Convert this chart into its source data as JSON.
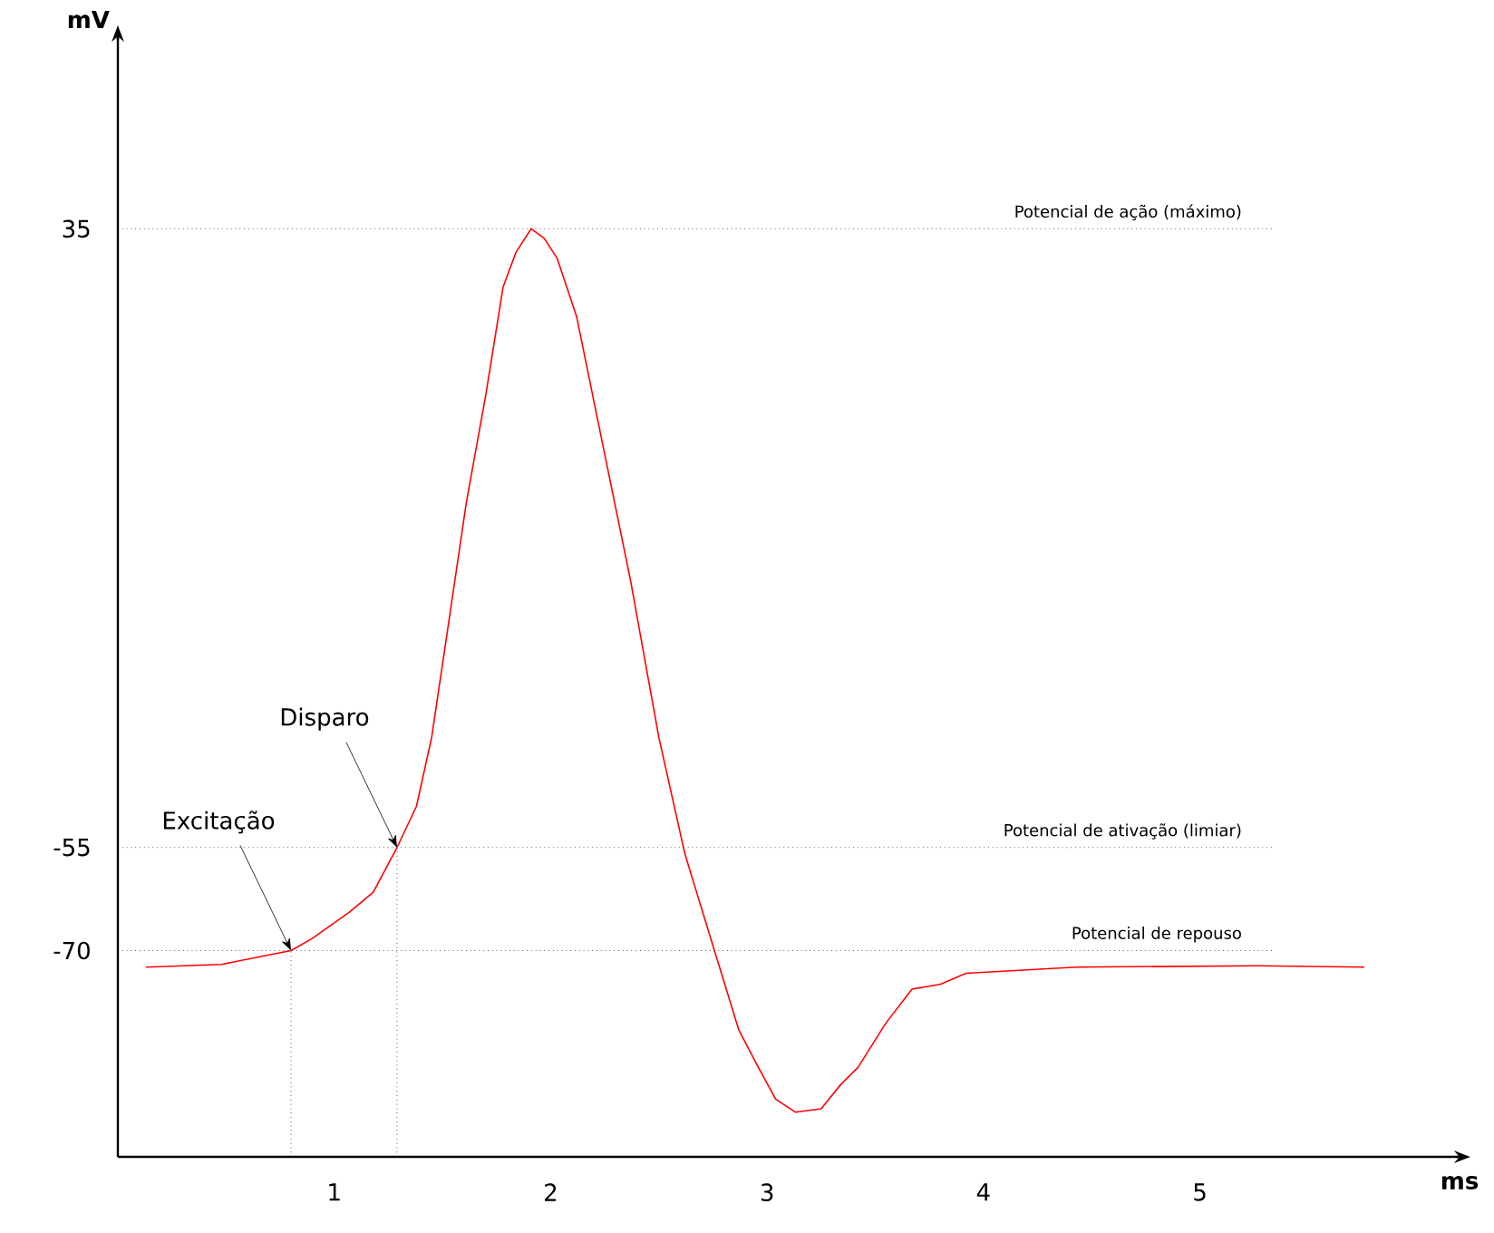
{
  "chart_data": {
    "type": "line",
    "xlabel": "ms",
    "ylabel": "mV",
    "x": [
      0.13,
      0.48,
      0.8,
      0.9,
      1.07,
      1.18,
      1.29,
      1.38,
      1.45,
      1.53,
      1.61,
      1.7,
      1.78,
      1.84,
      1.91,
      1.97,
      2.03,
      2.12,
      2.24,
      2.37,
      2.5,
      2.62,
      2.75,
      2.87,
      2.96,
      3.04,
      3.13,
      3.25,
      3.34,
      3.42,
      3.55,
      3.67,
      3.8,
      3.92,
      4.43,
      5.27,
      5.76
    ],
    "series": [
      {
        "color": "#ff0000",
        "values": [
          -72.4,
          -72,
          -70,
          -68.2,
          -64.4,
          -61.5,
          -55,
          -49,
          -39,
          -22,
          -4.9,
          10.8,
          26.5,
          31.6,
          35,
          33.6,
          30.7,
          22.2,
          3.7,
          -16.3,
          -39,
          -55.9,
          -69.3,
          -81.6,
          -87,
          -91.6,
          -93.5,
          -93,
          -89.5,
          -87,
          -80.5,
          -75.6,
          -74.9,
          -73.3,
          -72.4,
          -72.2,
          -72.4
        ]
      }
    ],
    "xlim": [
      0,
      6.2
    ],
    "ylim": [
      -100,
      63
    ],
    "xticks": [
      1,
      2,
      3,
      4,
      5
    ],
    "yticks": [
      35,
      -55,
      -70
    ],
    "grid": false,
    "marker": "none",
    "line_style": "solid",
    "ref_lines": [
      {
        "axis": "y",
        "value": 35,
        "label": "Potencial de ação (máximo)",
        "line_style": "dotted"
      },
      {
        "axis": "y",
        "value": -55,
        "label": "Potencial de ativação (limiar)",
        "line_style": "dotted"
      },
      {
        "axis": "y",
        "value": -70,
        "label": "Potencial de repouso",
        "line_style": "dotted"
      },
      {
        "axis": "x",
        "value": 0.8,
        "line_style": "dotted"
      },
      {
        "axis": "x",
        "value": 1.29,
        "line_style": "dotted"
      }
    ],
    "annotations": [
      {
        "text": "Excitação",
        "x": 0.8,
        "y": -70
      },
      {
        "text": "Disparo",
        "x": 1.29,
        "y": -55
      }
    ]
  }
}
